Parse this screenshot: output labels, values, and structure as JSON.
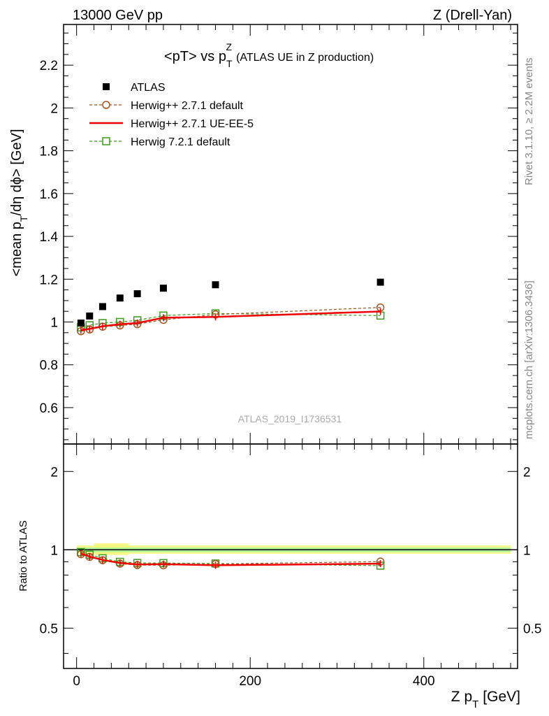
{
  "header": {
    "left": "13000 GeV pp",
    "right": "Z (Drell-Yan)"
  },
  "chart_data": [
    {
      "type": "scatter",
      "title": "<pT> vs p_T^Z (ATLAS UE in Z production)",
      "title_parts": {
        "main": "<pT> vs p",
        "sup": "Z",
        "sub": "T",
        "rest": "(ATLAS UE in Z production)"
      },
      "ylabel": "<mean p_T/dη dϕ> [GeV]",
      "ylabel_parts": {
        "a": "<mean p",
        "sub": "T",
        "b": "/dη dϕ> [GeV]"
      },
      "xlim": [
        -15,
        508
      ],
      "ylim": [
        0.43,
        2.39
      ],
      "y_ticks": [
        0.6,
        0.8,
        1,
        1.2,
        1.4,
        1.6,
        1.8,
        2,
        2.2
      ],
      "y_tick_labels": [
        "0.6",
        "0.8",
        "1",
        "1.2",
        "1.4",
        "1.6",
        "1.8",
        "2",
        "2.2"
      ],
      "legend_position": "top-left",
      "watermark": "ATLAS_2019_I1736531",
      "x": [
        5,
        15,
        30,
        50,
        70,
        100,
        160,
        350
      ],
      "series": [
        {
          "name": "ATLAS",
          "style": "data",
          "color": "#000000",
          "values": [
            0.995,
            1.028,
            1.072,
            1.112,
            1.132,
            1.158,
            1.174,
            1.186
          ]
        },
        {
          "name": "Herwig++ 2.7.1 default",
          "style": "circle-dashed",
          "color": "#a0541a",
          "values": [
            0.957,
            0.965,
            0.978,
            0.984,
            0.99,
            1.01,
            1.035,
            1.068
          ]
        },
        {
          "name": "Herwig++ 2.7.1 UE-EE-5",
          "style": "line",
          "color": "#ee0000",
          "values": [
            0.962,
            0.968,
            0.98,
            0.99,
            0.995,
            1.02,
            1.024,
            1.049
          ]
        },
        {
          "name": "Herwig 7.2.1 default",
          "style": "square-dashed",
          "color": "#3a9a1a",
          "values": [
            0.975,
            0.985,
            0.995,
            1.0,
            1.008,
            1.03,
            1.04,
            1.03
          ]
        }
      ]
    },
    {
      "type": "scatter",
      "title": "",
      "ylabel": "Ratio to ATLAS",
      "xlabel": "Z p_T [GeV]",
      "xlabel_parts": {
        "a": "Z p",
        "sub": "T",
        "b": "[GeV]"
      },
      "xlim": [
        -15,
        508
      ],
      "ylim": [
        0.35,
        2.55
      ],
      "log_scale_y": true,
      "y_ticks": [
        0.5,
        1,
        2
      ],
      "y_tick_labels": [
        "0.5",
        "1",
        "2"
      ],
      "x_ticks": [
        0,
        200,
        400
      ],
      "x_tick_labels": [
        "0",
        "200",
        "400"
      ],
      "x": [
        5,
        15,
        30,
        50,
        70,
        100,
        160,
        350
      ],
      "series": [
        {
          "name": "Herwig++ 2.7.1 default",
          "style": "circle-dashed",
          "color": "#a0541a",
          "values": [
            0.962,
            0.939,
            0.912,
            0.885,
            0.874,
            0.872,
            0.882,
            0.901
          ]
        },
        {
          "name": "Herwig++ 2.7.1 UE-EE-5",
          "style": "line",
          "color": "#ee0000",
          "values": [
            0.967,
            0.942,
            0.914,
            0.89,
            0.879,
            0.881,
            0.872,
            0.885
          ]
        },
        {
          "name": "Herwig 7.2.1 default",
          "style": "square-dashed",
          "color": "#3a9a1a",
          "values": [
            0.98,
            0.958,
            0.928,
            0.899,
            0.89,
            0.889,
            0.886,
            0.869
          ]
        }
      ]
    }
  ],
  "side_labels": {
    "rivet": "Rivet 3.1.10, ≥ 2.2M events",
    "mcplots": "mcplots.cern.ch [arXiv:1306.3436]"
  }
}
